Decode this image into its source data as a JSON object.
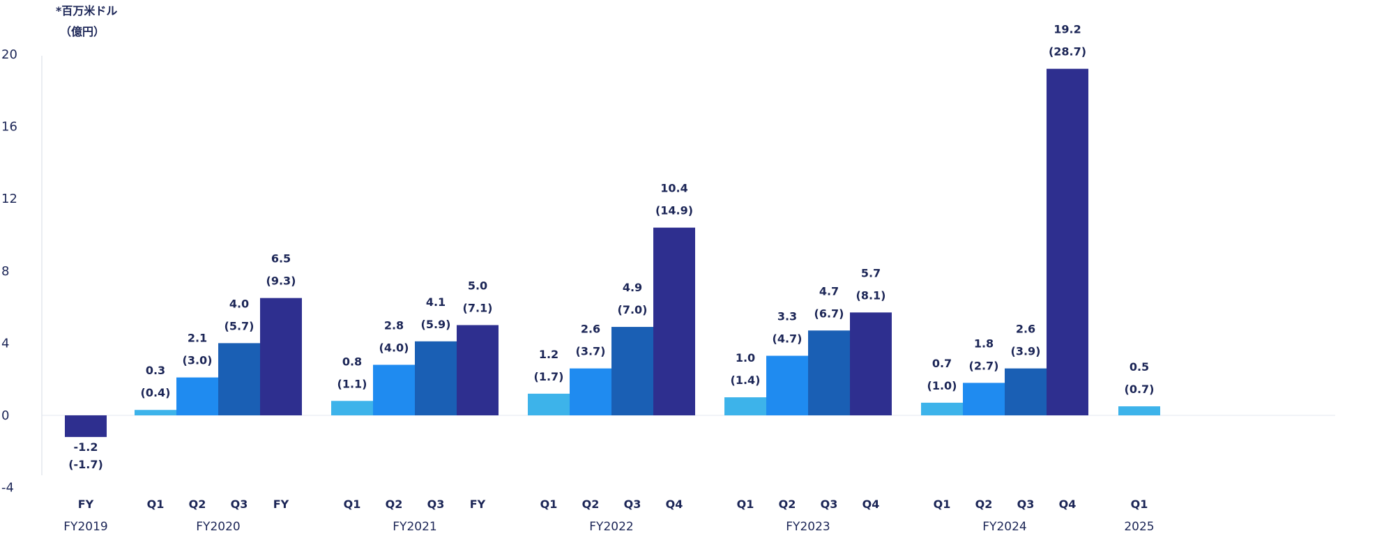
{
  "unit_label_line1": "*百万米ドル",
  "unit_label_line2": "（億円）",
  "chart_data": {
    "type": "bar",
    "ylim": [
      -4,
      20
    ],
    "yticks": [
      20,
      16,
      12,
      8,
      4,
      0,
      -4
    ],
    "grid": false,
    "groups": [
      {
        "label": "FY2019",
        "bars": [
          {
            "cat": "FY",
            "value": -1.2,
            "yen": "(-1.7)",
            "value_label": "-1.2",
            "color": "#2e2f8f"
          }
        ]
      },
      {
        "label": "FY2020",
        "bars": [
          {
            "cat": "Q1",
            "value": 0.3,
            "yen": "(0.4)",
            "value_label": "0.3",
            "color": "#3db3ea"
          },
          {
            "cat": "Q2",
            "value": 2.1,
            "yen": "(3.0)",
            "value_label": "2.1",
            "color": "#1f8bf0"
          },
          {
            "cat": "Q3",
            "value": 4.0,
            "yen": "(5.7)",
            "value_label": "4.0",
            "color": "#1a5fb4"
          },
          {
            "cat": "FY",
            "value": 6.5,
            "yen": "(9.3)",
            "value_label": "6.5",
            "color": "#2e2f8f"
          }
        ]
      },
      {
        "label": "FY2021",
        "bars": [
          {
            "cat": "Q1",
            "value": 0.8,
            "yen": "(1.1)",
            "value_label": "0.8",
            "color": "#3db3ea"
          },
          {
            "cat": "Q2",
            "value": 2.8,
            "yen": "(4.0)",
            "value_label": "2.8",
            "color": "#1f8bf0"
          },
          {
            "cat": "Q3",
            "value": 4.1,
            "yen": "(5.9)",
            "value_label": "4.1",
            "color": "#1a5fb4"
          },
          {
            "cat": "FY",
            "value": 5.0,
            "yen": "(7.1)",
            "value_label": "5.0",
            "color": "#2e2f8f"
          }
        ]
      },
      {
        "label": "FY2022",
        "bars": [
          {
            "cat": "Q1",
            "value": 1.2,
            "yen": "(1.7)",
            "value_label": "1.2",
            "color": "#3db3ea"
          },
          {
            "cat": "Q2",
            "value": 2.6,
            "yen": "(3.7)",
            "value_label": "2.6",
            "color": "#1f8bf0"
          },
          {
            "cat": "Q3",
            "value": 4.9,
            "yen": "(7.0)",
            "value_label": "4.9",
            "color": "#1a5fb4"
          },
          {
            "cat": "Q4",
            "value": 10.4,
            "yen": "(14.9)",
            "value_label": "10.4",
            "color": "#2e2f8f"
          }
        ]
      },
      {
        "label": "FY2023",
        "bars": [
          {
            "cat": "Q1",
            "value": 1.0,
            "yen": "(1.4)",
            "value_label": "1.0",
            "color": "#3db3ea"
          },
          {
            "cat": "Q2",
            "value": 3.3,
            "yen": "(4.7)",
            "value_label": "3.3",
            "color": "#1f8bf0"
          },
          {
            "cat": "Q3",
            "value": 4.7,
            "yen": "(6.7)",
            "value_label": "4.7",
            "color": "#1a5fb4"
          },
          {
            "cat": "Q4",
            "value": 5.7,
            "yen": "(8.1)",
            "value_label": "5.7",
            "color": "#2e2f8f"
          }
        ]
      },
      {
        "label": "FY2024",
        "bars": [
          {
            "cat": "Q1",
            "value": 0.7,
            "yen": "(1.0)",
            "value_label": "0.7",
            "color": "#3db3ea"
          },
          {
            "cat": "Q2",
            "value": 1.8,
            "yen": "(2.7)",
            "value_label": "1.8",
            "color": "#1f8bf0"
          },
          {
            "cat": "Q3",
            "value": 2.6,
            "yen": "(3.9)",
            "value_label": "2.6",
            "color": "#1a5fb4"
          },
          {
            "cat": "Q4",
            "value": 19.2,
            "yen": "(28.7)",
            "value_label": "19.2",
            "color": "#2e2f8f"
          }
        ]
      },
      {
        "label": "2025",
        "bars": [
          {
            "cat": "Q1",
            "value": 0.5,
            "yen": "(0.7)",
            "value_label": "0.5",
            "color": "#3db3ea"
          }
        ]
      }
    ]
  }
}
